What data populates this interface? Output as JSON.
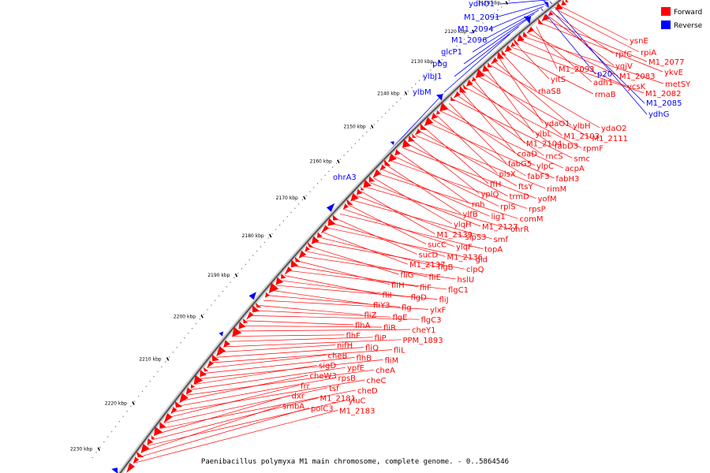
{
  "caption": "Paenibacillus polymyxa M1 main chromosome, complete genome. - 0..5864546",
  "legend": {
    "forward": {
      "label": "Forward",
      "color": "#ff0000"
    },
    "reverse": {
      "label": "Reverse",
      "color": "#0000ff"
    }
  },
  "ticks": [
    "2110 kbp",
    "2120 kbp",
    "2130 kbp",
    "2140 kbp",
    "2150 kbp",
    "2160 kbp",
    "2170 kbp",
    "2180 kbp",
    "2190 kbp",
    "2200 kbp",
    "2210 kbp",
    "2220 kbp",
    "2230 kbp"
  ],
  "reverse_genes": [
    "ydhO1",
    "M1_2091",
    "M1_2094",
    "M1_2096",
    "glcP1",
    "pbg",
    "ylbJ1",
    "ylbM",
    "ohrA3",
    "p20",
    "M1_2085",
    "ydhG"
  ],
  "forward_genes": [
    "ysnE",
    "rpiA",
    "rpfC",
    "yqjV",
    "M1_2077",
    "ykvE",
    "M1_2093",
    "adh1",
    "M1_2083",
    "metSY",
    "ycsK",
    "yitS",
    "M1_2082",
    "rmaB",
    "rhaS8",
    "ydaO1",
    "ylbH",
    "ydaO2",
    "ylbL",
    "M1_2103",
    "M1_2111",
    "M1_2104",
    "fabD3",
    "rpmF",
    "coaD",
    "rncS",
    "smc",
    "fabG5",
    "ylpC",
    "acpA",
    "plsX",
    "fabF3",
    "fabH3",
    "ffH",
    "ftsY",
    "rimM",
    "yplQ",
    "trmD",
    "yofM",
    "rnh",
    "rplS",
    "rpsP",
    "ylfB",
    "lig1",
    "comM",
    "ylqH",
    "M1_2127",
    "ohrR",
    "M1_2139",
    "sipS3",
    "smf",
    "sucC",
    "ylqF",
    "topA",
    "sucD",
    "M1_2136",
    "gid",
    "M1_2137",
    "flgB",
    "clpQ",
    "fliG",
    "fliE",
    "hslU",
    "fliH",
    "fliF",
    "flgC1",
    "fliI",
    "flgD",
    "fliJ",
    "fliY3",
    "flg",
    "ylxF",
    "fliZ",
    "flgE",
    "flgC3",
    "flhA",
    "fliR",
    "cheY1",
    "flhF",
    "fliP",
    "PPM_1893",
    "nifH",
    "fliQ",
    "fliL",
    "cheB",
    "flhB",
    "fliM",
    "sigD",
    "ypfE",
    "cheA",
    "cheW3",
    "rpsB",
    "cheC",
    "frr",
    "tsf",
    "cheD",
    "dxr",
    "M1_2181",
    "yluC",
    "smbA",
    "polC3",
    "M1_2183"
  ]
}
